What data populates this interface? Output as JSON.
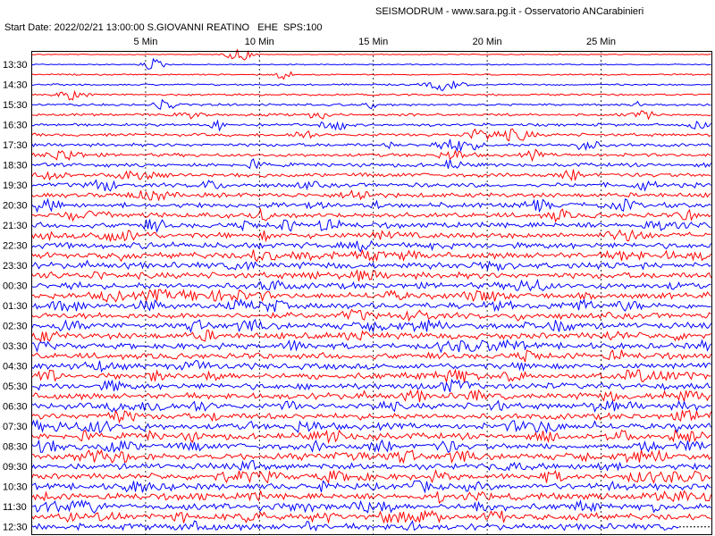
{
  "header": {
    "title": "SEISMODRUM - www.sara.pg.it - Osservatorio ANCarabinieri",
    "start_info": "Start Date: 2022/02/21 13:00:00 S.GIOVANNI REATINO   EHE  SPS:100"
  },
  "time_axis": {
    "minute_labels": [
      "5 Min",
      "10 Min",
      "15 Min",
      "20 Min",
      "25 Min"
    ]
  },
  "row_labels": [
    "13:30",
    "14:30",
    "15:30",
    "16:30",
    "17:30",
    "18:30",
    "19:30",
    "20:30",
    "21:30",
    "22:30",
    "23:30",
    "00:30",
    "01:30",
    "02:30",
    "03:30",
    "04:30",
    "05:30",
    "06:30",
    "07:30",
    "08:30",
    "09:30",
    "10:30",
    "11:30",
    "12:30"
  ]
}
